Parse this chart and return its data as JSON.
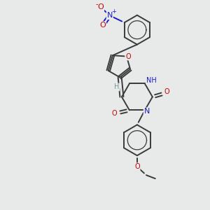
{
  "bg_color": "#e8eaea",
  "bond_color": "#3a3a3a",
  "bond_width": 1.4,
  "atom_colors": {
    "O": "#cc0000",
    "N": "#1a1acc",
    "H": "#6a9a9a"
  },
  "figsize": [
    3.0,
    3.0
  ],
  "dpi": 100,
  "xlim": [
    0,
    300
  ],
  "ylim": [
    0,
    300
  ]
}
